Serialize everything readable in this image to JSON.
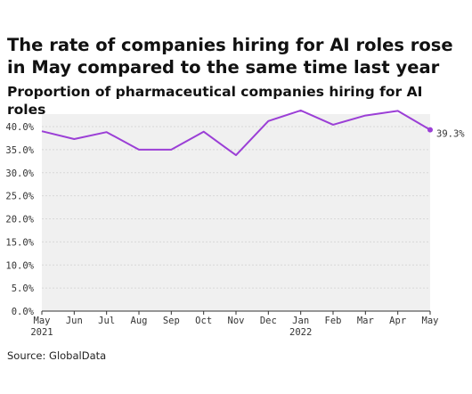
{
  "chart_data": {
    "type": "line",
    "title": "The rate of companies hiring for AI roles rose in May compared to the same time last year",
    "subtitle": "Proportion of pharmaceutical companies hiring for AI roles",
    "categories": [
      "May\n2021",
      "Jun",
      "Jul",
      "Aug",
      "Sep",
      "Oct",
      "Nov",
      "Dec",
      "Jan\n2022",
      "Feb",
      "Mar",
      "Apr",
      "May"
    ],
    "series": [
      {
        "values": [
          39.0,
          37.3,
          38.8,
          35.0,
          35.0,
          38.9,
          33.8,
          41.2,
          43.5,
          40.4,
          42.4,
          43.4,
          39.3
        ]
      }
    ],
    "ylim": [
      0,
      40
    ],
    "y_ticks": [
      "0.0%",
      "5.0%",
      "10.0%",
      "15.0%",
      "20.0%",
      "25.0%",
      "30.0%",
      "35.0%",
      "40.0%"
    ],
    "y_tick_values": [
      0,
      5,
      10,
      15,
      20,
      25,
      30,
      35,
      40
    ],
    "last_value_label": "39.3%",
    "grid": true,
    "colors": {
      "line": "#9b3fd6",
      "plot_bg": "#f0f0f0",
      "grid": "#d8d8d8"
    }
  },
  "source": "Source: GlobalData"
}
